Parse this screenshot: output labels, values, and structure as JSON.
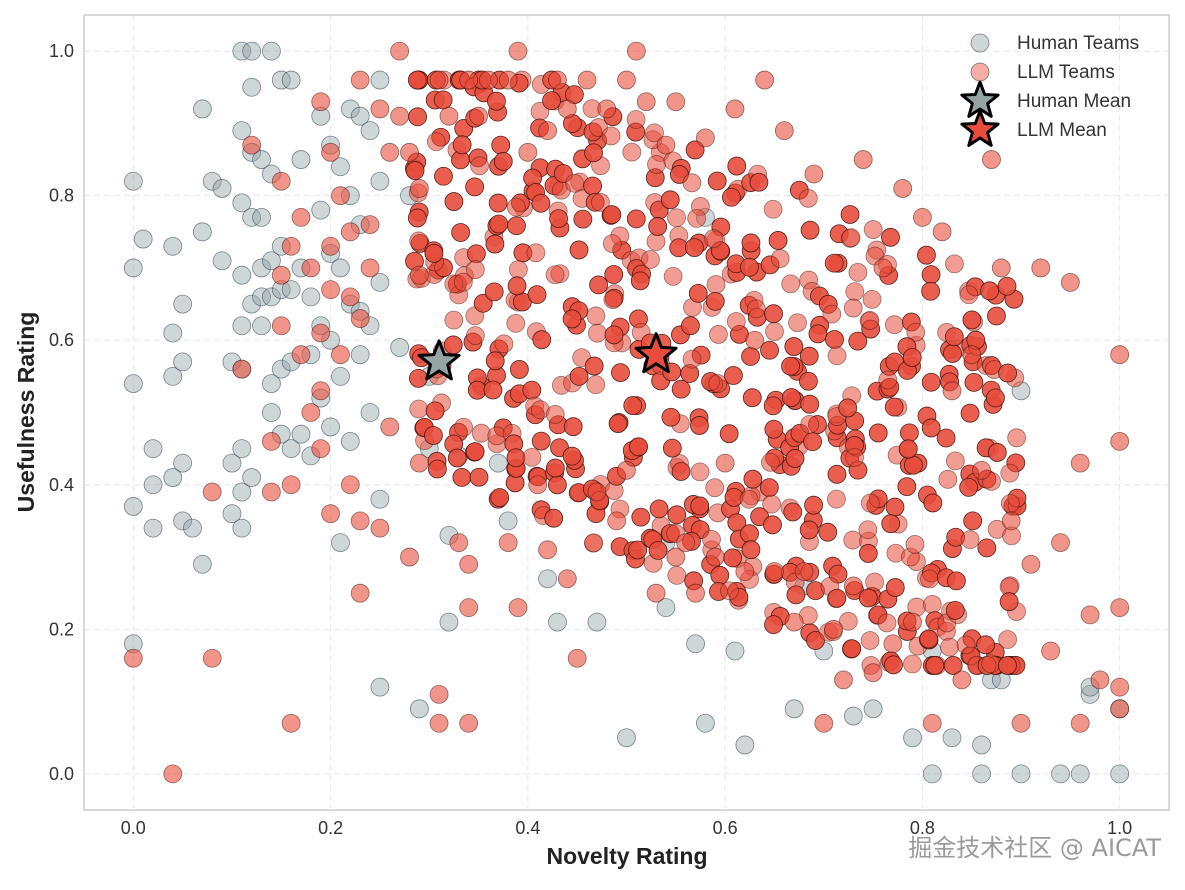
{
  "chart_data": {
    "type": "scatter",
    "title": "",
    "xlabel": "Novelty Rating",
    "ylabel": "Usefulness Rating",
    "xlim": [
      -0.05,
      1.05
    ],
    "ylim": [
      -0.05,
      1.05
    ],
    "xticks": [
      0.0,
      0.2,
      0.4,
      0.6,
      0.8,
      1.0
    ],
    "yticks": [
      0.0,
      0.2,
      0.4,
      0.6,
      0.8,
      1.0
    ],
    "xtick_labels": [
      "0.0",
      "0.2",
      "0.4",
      "0.6",
      "0.8",
      "1.0"
    ],
    "ytick_labels": [
      "0.0",
      "0.2",
      "0.4",
      "0.6",
      "0.8",
      "1.0"
    ],
    "grid": true,
    "legend_position": "top-right",
    "series": [
      {
        "name": "Human Teams",
        "color": "#95a5a6",
        "marker": "circle",
        "points": [
          [
            0.0,
            0.82
          ],
          [
            0.0,
            0.7
          ],
          [
            0.0,
            0.54
          ],
          [
            0.0,
            0.37
          ],
          [
            0.0,
            0.18
          ],
          [
            0.01,
            0.74
          ],
          [
            0.02,
            0.45
          ],
          [
            0.02,
            0.4
          ],
          [
            0.02,
            0.34
          ],
          [
            0.04,
            0.73
          ],
          [
            0.04,
            0.55
          ],
          [
            0.04,
            0.41
          ],
          [
            0.04,
            0.61
          ],
          [
            0.05,
            0.65
          ],
          [
            0.05,
            0.35
          ],
          [
            0.05,
            0.43
          ],
          [
            0.05,
            0.57
          ],
          [
            0.06,
            0.34
          ],
          [
            0.07,
            0.29
          ],
          [
            0.07,
            0.92
          ],
          [
            0.07,
            0.75
          ],
          [
            0.08,
            0.82
          ],
          [
            0.09,
            0.71
          ],
          [
            0.09,
            0.81
          ],
          [
            0.1,
            0.57
          ],
          [
            0.1,
            0.43
          ],
          [
            0.1,
            0.36
          ],
          [
            0.11,
            1.0
          ],
          [
            0.11,
            0.89
          ],
          [
            0.11,
            0.79
          ],
          [
            0.11,
            0.69
          ],
          [
            0.11,
            0.62
          ],
          [
            0.11,
            0.56
          ],
          [
            0.11,
            0.45
          ],
          [
            0.11,
            0.39
          ],
          [
            0.11,
            0.34
          ],
          [
            0.12,
            1.0
          ],
          [
            0.12,
            0.95
          ],
          [
            0.12,
            0.86
          ],
          [
            0.12,
            0.77
          ],
          [
            0.12,
            0.65
          ],
          [
            0.12,
            0.41
          ],
          [
            0.13,
            0.85
          ],
          [
            0.13,
            0.77
          ],
          [
            0.13,
            0.7
          ],
          [
            0.13,
            0.66
          ],
          [
            0.13,
            0.62
          ],
          [
            0.14,
            1.0
          ],
          [
            0.14,
            0.83
          ],
          [
            0.14,
            0.71
          ],
          [
            0.14,
            0.66
          ],
          [
            0.14,
            0.54
          ],
          [
            0.14,
            0.5
          ],
          [
            0.15,
            0.96
          ],
          [
            0.15,
            0.73
          ],
          [
            0.15,
            0.67
          ],
          [
            0.15,
            0.56
          ],
          [
            0.15,
            0.47
          ],
          [
            0.16,
            0.96
          ],
          [
            0.16,
            0.67
          ],
          [
            0.16,
            0.57
          ],
          [
            0.16,
            0.45
          ],
          [
            0.17,
            0.85
          ],
          [
            0.17,
            0.7
          ],
          [
            0.17,
            0.47
          ],
          [
            0.18,
            0.66
          ],
          [
            0.18,
            0.58
          ],
          [
            0.18,
            0.44
          ],
          [
            0.19,
            0.91
          ],
          [
            0.19,
            0.78
          ],
          [
            0.19,
            0.62
          ],
          [
            0.19,
            0.52
          ],
          [
            0.2,
            0.87
          ],
          [
            0.2,
            0.72
          ],
          [
            0.2,
            0.6
          ],
          [
            0.2,
            0.48
          ],
          [
            0.21,
            0.84
          ],
          [
            0.21,
            0.7
          ],
          [
            0.21,
            0.55
          ],
          [
            0.21,
            0.32
          ],
          [
            0.22,
            0.92
          ],
          [
            0.22,
            0.8
          ],
          [
            0.22,
            0.65
          ],
          [
            0.22,
            0.46
          ],
          [
            0.23,
            0.91
          ],
          [
            0.23,
            0.76
          ],
          [
            0.23,
            0.64
          ],
          [
            0.23,
            0.58
          ],
          [
            0.24,
            0.89
          ],
          [
            0.24,
            0.62
          ],
          [
            0.24,
            0.5
          ],
          [
            0.25,
            0.96
          ],
          [
            0.25,
            0.82
          ],
          [
            0.25,
            0.68
          ],
          [
            0.25,
            0.38
          ],
          [
            0.25,
            0.12
          ],
          [
            0.27,
            0.59
          ],
          [
            0.28,
            0.8
          ],
          [
            0.29,
            0.09
          ],
          [
            0.3,
            0.55
          ],
          [
            0.3,
            0.45
          ],
          [
            0.32,
            0.33
          ],
          [
            0.32,
            0.21
          ],
          [
            0.33,
            0.44
          ],
          [
            0.37,
            0.43
          ],
          [
            0.38,
            0.35
          ],
          [
            0.42,
            0.27
          ],
          [
            0.43,
            0.21
          ],
          [
            0.47,
            0.21
          ],
          [
            0.5,
            0.05
          ],
          [
            0.54,
            0.23
          ],
          [
            0.54,
            0.32
          ],
          [
            0.57,
            0.18
          ],
          [
            0.58,
            0.77
          ],
          [
            0.58,
            0.07
          ],
          [
            0.61,
            0.17
          ],
          [
            0.62,
            0.04
          ],
          [
            0.67,
            0.09
          ],
          [
            0.68,
            0.26
          ],
          [
            0.7,
            0.17
          ],
          [
            0.73,
            0.08
          ],
          [
            0.75,
            0.09
          ],
          [
            0.79,
            0.05
          ],
          [
            0.81,
            0.0
          ],
          [
            0.81,
            0.17
          ],
          [
            0.83,
            0.05
          ],
          [
            0.86,
            0.0
          ],
          [
            0.86,
            0.04
          ],
          [
            0.87,
            0.13
          ],
          [
            0.88,
            0.13
          ],
          [
            0.9,
            0.0
          ],
          [
            0.9,
            0.53
          ],
          [
            0.94,
            0.0
          ],
          [
            0.96,
            0.0
          ],
          [
            0.97,
            0.11
          ],
          [
            0.97,
            0.12
          ],
          [
            1.0,
            0.0
          ],
          [
            1.0,
            0.09
          ]
        ]
      },
      {
        "name": "LLM Teams",
        "color": "#e74c3c",
        "marker": "circle",
        "points": [
          [
            0.0,
            0.16
          ],
          [
            0.04,
            0.0
          ],
          [
            0.08,
            0.16
          ],
          [
            0.08,
            0.39
          ],
          [
            0.11,
            0.56
          ],
          [
            0.12,
            0.87
          ],
          [
            0.14,
            0.46
          ],
          [
            0.14,
            0.39
          ],
          [
            0.15,
            0.82
          ],
          [
            0.15,
            0.69
          ],
          [
            0.15,
            0.62
          ],
          [
            0.16,
            0.07
          ],
          [
            0.16,
            0.4
          ],
          [
            0.16,
            0.73
          ],
          [
            0.17,
            0.58
          ],
          [
            0.17,
            0.77
          ],
          [
            0.18,
            0.7
          ],
          [
            0.18,
            0.5
          ],
          [
            0.19,
            0.61
          ],
          [
            0.19,
            0.93
          ],
          [
            0.19,
            0.53
          ],
          [
            0.19,
            0.45
          ],
          [
            0.2,
            0.86
          ],
          [
            0.2,
            0.73
          ],
          [
            0.2,
            0.67
          ],
          [
            0.2,
            0.36
          ],
          [
            0.21,
            0.8
          ],
          [
            0.21,
            0.58
          ],
          [
            0.22,
            0.75
          ],
          [
            0.22,
            0.66
          ],
          [
            0.22,
            0.4
          ],
          [
            0.23,
            0.25
          ],
          [
            0.23,
            0.96
          ],
          [
            0.23,
            0.63
          ],
          [
            0.23,
            0.35
          ],
          [
            0.24,
            0.7
          ],
          [
            0.24,
            0.76
          ],
          [
            0.25,
            0.92
          ],
          [
            0.25,
            0.34
          ],
          [
            0.26,
            0.86
          ],
          [
            0.26,
            0.48
          ],
          [
            0.27,
            1.0
          ],
          [
            0.27,
            0.91
          ],
          [
            0.28,
            0.3
          ],
          [
            0.28,
            0.86
          ],
          [
            0.29,
            0.43
          ],
          [
            0.29,
            0.81
          ],
          [
            0.29,
            0.69
          ],
          [
            0.31,
            0.11
          ],
          [
            0.31,
            0.07
          ],
          [
            0.31,
            0.96
          ],
          [
            0.32,
            0.91
          ],
          [
            0.33,
            0.32
          ],
          [
            0.34,
            0.07
          ],
          [
            0.34,
            0.29
          ],
          [
            0.34,
            0.23
          ],
          [
            0.34,
            0.96
          ],
          [
            0.35,
            0.91
          ],
          [
            0.36,
            0.96
          ],
          [
            0.38,
            0.32
          ],
          [
            0.38,
            0.96
          ],
          [
            0.39,
            0.23
          ],
          [
            0.39,
            1.0
          ],
          [
            0.4,
            0.86
          ],
          [
            0.41,
            0.4
          ],
          [
            0.42,
            0.89
          ],
          [
            0.42,
            0.31
          ],
          [
            0.43,
            0.96
          ],
          [
            0.44,
            0.92
          ],
          [
            0.44,
            0.27
          ],
          [
            0.45,
            0.16
          ],
          [
            0.46,
            0.96
          ],
          [
            0.47,
            0.39
          ],
          [
            0.48,
            0.92
          ],
          [
            0.49,
            0.35
          ],
          [
            0.5,
            0.96
          ],
          [
            0.5,
            0.42
          ],
          [
            0.51,
            1.0
          ],
          [
            0.52,
            0.93
          ],
          [
            0.53,
            0.25
          ],
          [
            0.54,
            0.87
          ],
          [
            0.55,
            0.93
          ],
          [
            0.55,
            0.3
          ],
          [
            0.56,
            0.32
          ],
          [
            0.57,
            0.25
          ],
          [
            0.58,
            0.88
          ],
          [
            0.59,
            0.3
          ],
          [
            0.6,
            0.43
          ],
          [
            0.61,
            0.92
          ],
          [
            0.62,
            0.28
          ],
          [
            0.63,
            0.6
          ],
          [
            0.64,
            0.96
          ],
          [
            0.65,
            0.28
          ],
          [
            0.66,
            0.89
          ],
          [
            0.67,
            0.21
          ],
          [
            0.68,
            0.28
          ],
          [
            0.69,
            0.83
          ],
          [
            0.7,
            0.07
          ],
          [
            0.71,
            0.2
          ],
          [
            0.72,
            0.13
          ],
          [
            0.73,
            0.26
          ],
          [
            0.74,
            0.85
          ],
          [
            0.75,
            0.14
          ],
          [
            0.76,
            0.7
          ],
          [
            0.77,
            0.18
          ],
          [
            0.78,
            0.81
          ],
          [
            0.79,
            0.21
          ],
          [
            0.8,
            0.77
          ],
          [
            0.81,
            0.07
          ],
          [
            0.82,
            0.75
          ],
          [
            0.83,
            0.53
          ],
          [
            0.84,
            0.13
          ],
          [
            0.85,
            0.58
          ],
          [
            0.86,
            0.42
          ],
          [
            0.87,
            0.85
          ],
          [
            0.88,
            0.7
          ],
          [
            0.89,
            0.35
          ],
          [
            0.9,
            0.07
          ],
          [
            0.91,
            0.29
          ],
          [
            0.92,
            0.7
          ],
          [
            0.93,
            0.17
          ],
          [
            0.94,
            0.32
          ],
          [
            0.95,
            0.68
          ],
          [
            0.96,
            0.07
          ],
          [
            0.96,
            0.43
          ],
          [
            0.97,
            0.22
          ],
          [
            0.98,
            0.13
          ],
          [
            1.0,
            0.58
          ],
          [
            1.0,
            0.46
          ],
          [
            1.0,
            0.23
          ],
          [
            1.0,
            0.12
          ],
          [
            1.0,
            0.09
          ]
        ]
      },
      {
        "name": "Human Mean",
        "color": "#95a5a6",
        "marker": "star",
        "points": [
          [
            0.31,
            0.57
          ]
        ]
      },
      {
        "name": "LLM Mean",
        "color": "#e74c3c",
        "marker": "star",
        "points": [
          [
            0.53,
            0.58
          ]
        ]
      }
    ]
  },
  "watermark": "掘金技术社区 @ AICAT"
}
